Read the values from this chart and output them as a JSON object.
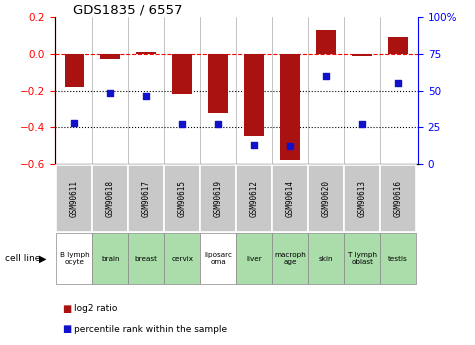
{
  "title": "GDS1835 / 6557",
  "samples": [
    "GSM90611",
    "GSM90618",
    "GSM90617",
    "GSM90615",
    "GSM90619",
    "GSM90612",
    "GSM90614",
    "GSM90620",
    "GSM90613",
    "GSM90616"
  ],
  "cell_lines": [
    "B lymph\nocyte",
    "brain",
    "breast",
    "cervix",
    "liposarc\noma",
    "liver",
    "macroph\nage",
    "skin",
    "T lymph\noblast",
    "testis"
  ],
  "log2_ratio": [
    -0.18,
    -0.03,
    0.01,
    -0.22,
    -0.32,
    -0.45,
    -0.58,
    0.13,
    -0.01,
    0.09
  ],
  "pct_rank": [
    28,
    48,
    46,
    27,
    27,
    13,
    12,
    60,
    27,
    55
  ],
  "bar_color": "#aa1111",
  "dot_color": "#1111cc",
  "ylim_left": [
    -0.6,
    0.2
  ],
  "ylim_right": [
    0,
    100
  ],
  "yticks_left": [
    -0.6,
    -0.4,
    -0.2,
    0.0,
    0.2
  ],
  "yticks_right": [
    0,
    25,
    50,
    75,
    100
  ],
  "ytick_labels_right": [
    "0",
    "25",
    "50",
    "75",
    "100%"
  ],
  "dotted_lines": [
    -0.2,
    -0.4
  ],
  "bar_width": 0.55,
  "bg_color_gray": "#c8c8c8",
  "bg_color_green": "#aaddaa",
  "bg_color_white": "#ffffff",
  "green_indices": [
    1,
    2,
    3,
    5,
    6,
    7,
    8,
    9
  ],
  "legend_bar_label": "log2 ratio",
  "legend_dot_label": "percentile rank within the sample",
  "cell_line_label": "cell line"
}
